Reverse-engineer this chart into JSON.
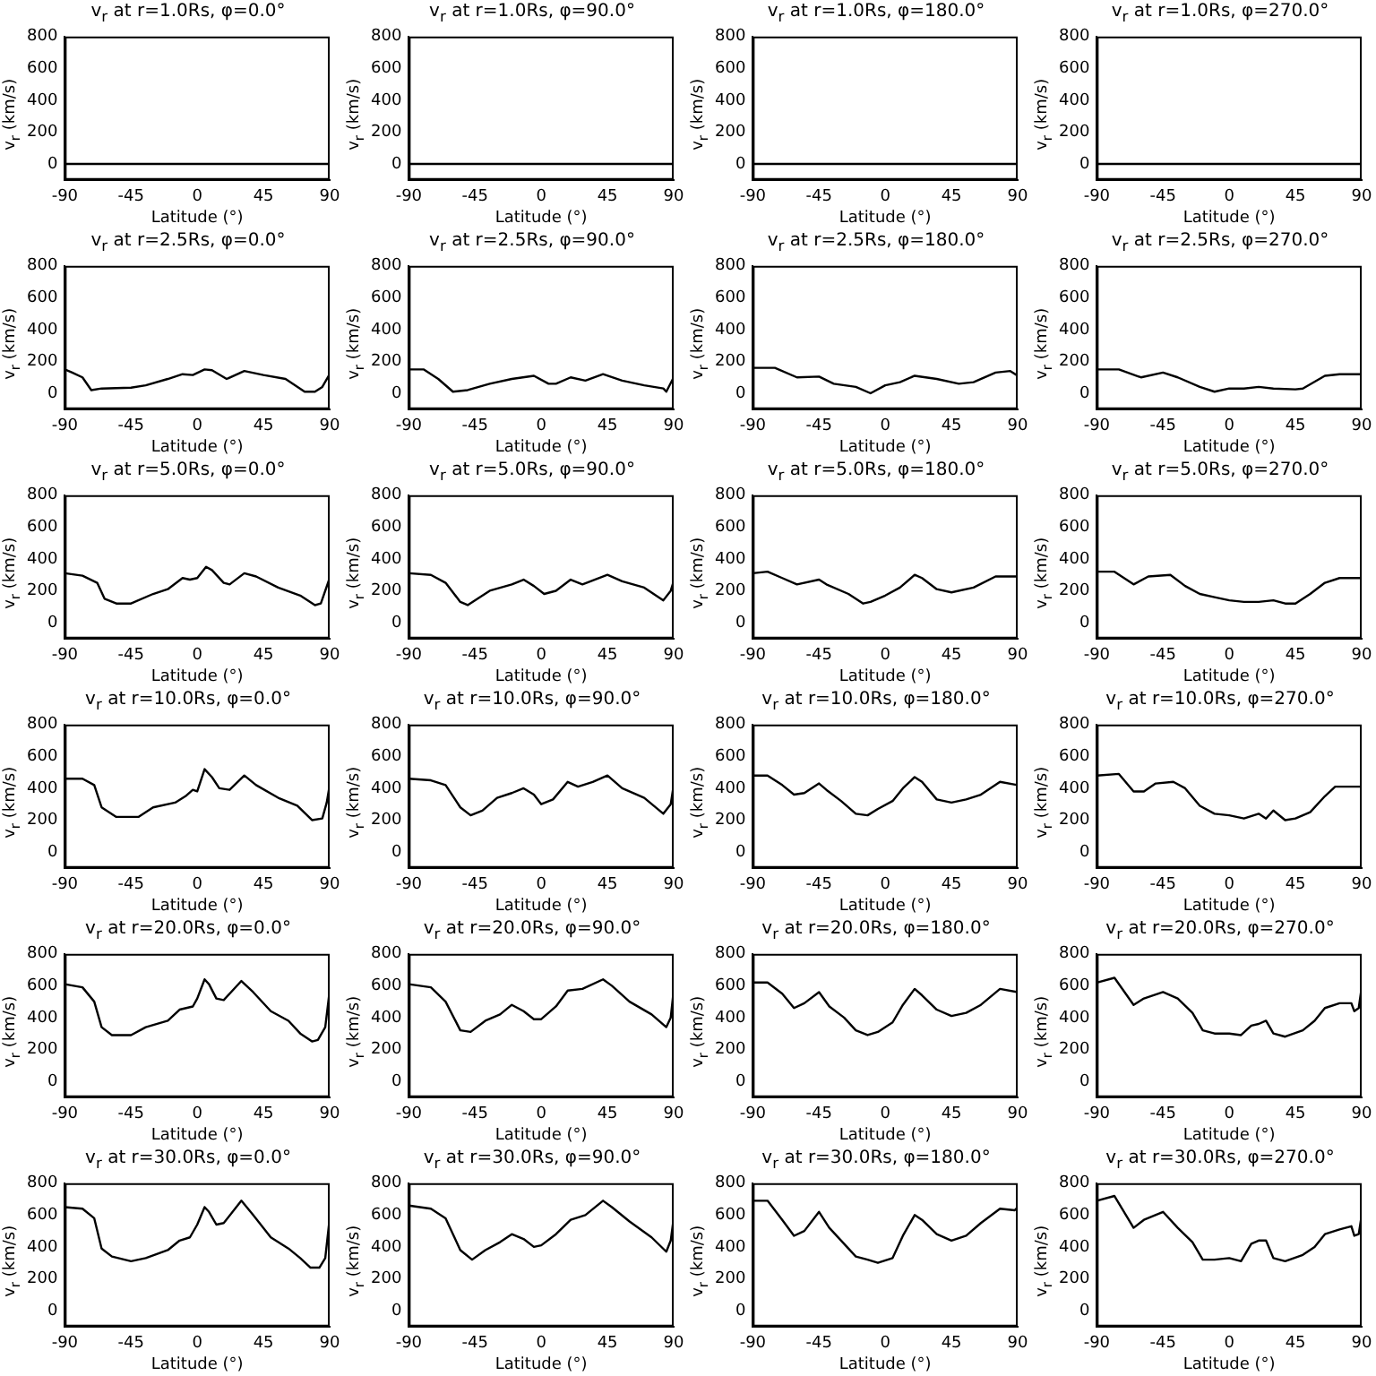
{
  "chart_data": [
    {
      "type": "line",
      "title": "v$_{r}$ at r=1.0Rs, φ=0.0°",
      "xlabel": "Latitude (°)",
      "ylabel": "v$_{r}$ (km/s)",
      "x": [
        -90,
        90
      ],
      "values": [
        0,
        0
      ],
      "color": "#000000",
      "xlim": [
        -90,
        90
      ],
      "xticks": [
        -90,
        -45,
        0,
        45,
        90
      ],
      "ylim": [
        -100,
        800
      ],
      "yticks": [
        0,
        200,
        400,
        600,
        800
      ]
    },
    {
      "type": "line",
      "title": "v$_{r}$ at r=1.0Rs, φ=90.0°",
      "xlabel": "Latitude (°)",
      "ylabel": "v$_{r}$ (km/s)",
      "x": [
        -90,
        90
      ],
      "values": [
        0,
        0
      ],
      "color": "#000000",
      "xlim": [
        -90,
        90
      ],
      "xticks": [
        -90,
        -45,
        0,
        45,
        90
      ],
      "ylim": [
        -100,
        800
      ],
      "yticks": [
        0,
        200,
        400,
        600,
        800
      ]
    },
    {
      "type": "line",
      "title": "v$_{r}$ at r=1.0Rs, φ=180.0°",
      "xlabel": "Latitude (°)",
      "ylabel": "v$_{r}$ (km/s)",
      "x": [
        -90,
        90
      ],
      "values": [
        0,
        0
      ],
      "color": "#000000",
      "xlim": [
        -90,
        90
      ],
      "xticks": [
        -90,
        -45,
        0,
        45,
        90
      ],
      "ylim": [
        -100,
        800
      ],
      "yticks": [
        0,
        200,
        400,
        600,
        800
      ]
    },
    {
      "type": "line",
      "title": "v$_{r}$ at r=1.0Rs, φ=270.0°",
      "xlabel": "Latitude (°)",
      "ylabel": "v$_{r}$ (km/s)",
      "x": [
        -90,
        90
      ],
      "values": [
        0,
        0
      ],
      "color": "#000000",
      "xlim": [
        -90,
        90
      ],
      "xticks": [
        -90,
        -45,
        0,
        45,
        90
      ],
      "ylim": [
        -100,
        800
      ],
      "yticks": [
        0,
        200,
        400,
        600,
        800
      ]
    },
    {
      "type": "line",
      "title": "v$_{r}$ at r=2.5Rs, φ=0.0°",
      "xlabel": "Latitude (°)",
      "ylabel": "v$_{r}$ (km/s)",
      "x": [
        -90,
        -85,
        -78,
        -72,
        -65,
        -45,
        -35,
        -20,
        -10,
        -3,
        5,
        10,
        20,
        32,
        45,
        60,
        73,
        80,
        85,
        90
      ],
      "values": [
        150,
        130,
        100,
        20,
        30,
        35,
        50,
        90,
        120,
        115,
        150,
        145,
        90,
        140,
        115,
        90,
        10,
        10,
        40,
        120
      ],
      "color": "#000000",
      "xlim": [
        -90,
        90
      ],
      "xticks": [
        -90,
        -45,
        0,
        45,
        90
      ],
      "ylim": [
        -100,
        800
      ],
      "yticks": [
        0,
        200,
        400,
        600,
        800
      ]
    },
    {
      "type": "line",
      "title": "v$_{r}$ at r=2.5Rs, φ=90.0°",
      "xlabel": "Latitude (°)",
      "ylabel": "v$_{r}$ (km/s)",
      "x": [
        -90,
        -80,
        -70,
        -60,
        -50,
        -35,
        -20,
        -5,
        5,
        10,
        20,
        30,
        42,
        55,
        70,
        83,
        85,
        90
      ],
      "values": [
        150,
        150,
        90,
        10,
        20,
        60,
        90,
        110,
        60,
        60,
        100,
        80,
        120,
        80,
        50,
        30,
        10,
        100
      ],
      "color": "#000000",
      "xlim": [
        -90,
        90
      ],
      "xticks": [
        -90,
        -45,
        0,
        45,
        90
      ],
      "ylim": [
        -100,
        800
      ],
      "yticks": [
        0,
        200,
        400,
        600,
        800
      ]
    },
    {
      "type": "line",
      "title": "v$_{r}$ at r=2.5Rs, φ=180.0°",
      "xlabel": "Latitude (°)",
      "ylabel": "v$_{r}$ (km/s)",
      "x": [
        -90,
        -75,
        -60,
        -45,
        -35,
        -20,
        -10,
        0,
        10,
        20,
        35,
        50,
        60,
        75,
        85,
        90
      ],
      "values": [
        160,
        160,
        100,
        105,
        60,
        40,
        0,
        50,
        70,
        110,
        90,
        60,
        70,
        130,
        140,
        110
      ],
      "color": "#000000",
      "xlim": [
        -90,
        90
      ],
      "xticks": [
        -90,
        -45,
        0,
        45,
        90
      ],
      "ylim": [
        -100,
        800
      ],
      "yticks": [
        0,
        200,
        400,
        600,
        800
      ]
    },
    {
      "type": "line",
      "title": "v$_{r}$ at r=2.5Rs, φ=270.0°",
      "xlabel": "Latitude (°)",
      "ylabel": "v$_{r}$ (km/s)",
      "x": [
        -90,
        -75,
        -60,
        -45,
        -35,
        -20,
        -10,
        0,
        10,
        20,
        30,
        45,
        50,
        65,
        75,
        90
      ],
      "values": [
        150,
        150,
        100,
        130,
        100,
        40,
        10,
        30,
        30,
        40,
        30,
        25,
        30,
        110,
        120,
        120
      ],
      "color": "#000000",
      "xlim": [
        -90,
        90
      ],
      "xticks": [
        -90,
        -45,
        0,
        45,
        90
      ],
      "ylim": [
        -100,
        800
      ],
      "yticks": [
        0,
        200,
        400,
        600,
        800
      ]
    },
    {
      "type": "line",
      "title": "v$_{r}$ at r=5.0Rs, φ=0.0°",
      "xlabel": "Latitude (°)",
      "ylabel": "v$_{r}$ (km/s)",
      "x": [
        -90,
        -78,
        -68,
        -63,
        -55,
        -45,
        -30,
        -20,
        -10,
        -5,
        0,
        6,
        10,
        18,
        22,
        32,
        40,
        55,
        70,
        80,
        84,
        90
      ],
      "values": [
        310,
        295,
        250,
        150,
        120,
        120,
        180,
        210,
        280,
        270,
        280,
        350,
        330,
        250,
        240,
        310,
        290,
        220,
        170,
        110,
        120,
        280
      ],
      "color": "#000000",
      "xlim": [
        -90,
        90
      ],
      "xticks": [
        -90,
        -45,
        0,
        45,
        90
      ],
      "ylim": [
        -100,
        800
      ],
      "yticks": [
        0,
        200,
        400,
        600,
        800
      ]
    },
    {
      "type": "line",
      "title": "v$_{r}$ at r=5.0Rs, φ=90.0°",
      "xlabel": "Latitude (°)",
      "ylabel": "v$_{r}$ (km/s)",
      "x": [
        -90,
        -75,
        -65,
        -55,
        -50,
        -35,
        -20,
        -12,
        -5,
        2,
        10,
        20,
        28,
        45,
        55,
        70,
        83,
        88,
        90
      ],
      "values": [
        310,
        300,
        250,
        130,
        110,
        200,
        240,
        270,
        230,
        180,
        200,
        270,
        240,
        300,
        260,
        220,
        140,
        200,
        260
      ],
      "color": "#000000",
      "xlim": [
        -90,
        90
      ],
      "xticks": [
        -90,
        -45,
        0,
        45,
        90
      ],
      "ylim": [
        -100,
        800
      ],
      "yticks": [
        0,
        200,
        400,
        600,
        800
      ]
    },
    {
      "type": "line",
      "title": "v$_{r}$ at r=5.0Rs, φ=180.0°",
      "xlabel": "Latitude (°)",
      "ylabel": "v$_{r}$ (km/s)",
      "x": [
        -90,
        -80,
        -70,
        -60,
        -45,
        -40,
        -25,
        -15,
        -10,
        0,
        10,
        20,
        25,
        35,
        45,
        60,
        75,
        90
      ],
      "values": [
        310,
        320,
        280,
        240,
        270,
        240,
        180,
        120,
        130,
        170,
        220,
        300,
        280,
        210,
        190,
        220,
        290,
        290
      ],
      "color": "#000000",
      "xlim": [
        -90,
        90
      ],
      "xticks": [
        -90,
        -45,
        0,
        45,
        90
      ],
      "ylim": [
        -100,
        800
      ],
      "yticks": [
        0,
        200,
        400,
        600,
        800
      ]
    },
    {
      "type": "line",
      "title": "v$_{r}$ at r=5.0Rs, φ=270.0°",
      "xlabel": "Latitude (°)",
      "ylabel": "v$_{r}$ (km/s)",
      "x": [
        -90,
        -78,
        -65,
        -55,
        -40,
        -30,
        -20,
        -10,
        0,
        10,
        20,
        30,
        38,
        45,
        55,
        65,
        75,
        90
      ],
      "values": [
        320,
        320,
        240,
        290,
        300,
        230,
        180,
        160,
        140,
        130,
        130,
        140,
        120,
        120,
        180,
        250,
        280,
        280
      ],
      "color": "#000000",
      "xlim": [
        -90,
        90
      ],
      "xticks": [
        -90,
        -45,
        0,
        45,
        90
      ],
      "ylim": [
        -100,
        800
      ],
      "yticks": [
        0,
        200,
        400,
        600,
        800
      ]
    },
    {
      "type": "line",
      "title": "v$_{r}$ at r=10.0Rs, φ=0.0°",
      "xlabel": "Latitude (°)",
      "ylabel": "v$_{r}$ (km/s)",
      "x": [
        -90,
        -78,
        -70,
        -65,
        -55,
        -40,
        -30,
        -15,
        -8,
        -3,
        0,
        5,
        10,
        15,
        22,
        32,
        40,
        55,
        68,
        78,
        85,
        88,
        90
      ],
      "values": [
        460,
        460,
        420,
        280,
        220,
        220,
        280,
        310,
        350,
        390,
        380,
        520,
        470,
        400,
        390,
        480,
        420,
        340,
        290,
        200,
        210,
        310,
        420
      ],
      "color": "#000000",
      "xlim": [
        -90,
        90
      ],
      "xticks": [
        -90,
        -45,
        0,
        45,
        90
      ],
      "ylim": [
        -100,
        800
      ],
      "yticks": [
        0,
        200,
        400,
        600,
        800
      ]
    },
    {
      "type": "line",
      "title": "v$_{r}$ at r=10.0Rs, φ=90.0°",
      "xlabel": "Latitude (°)",
      "ylabel": "v$_{r}$ (km/s)",
      "x": [
        -90,
        -75,
        -65,
        -55,
        -48,
        -40,
        -30,
        -20,
        -12,
        -5,
        0,
        8,
        18,
        25,
        35,
        45,
        55,
        70,
        83,
        88,
        90
      ],
      "values": [
        460,
        450,
        420,
        280,
        230,
        260,
        340,
        370,
        400,
        360,
        300,
        330,
        440,
        410,
        440,
        480,
        400,
        340,
        240,
        300,
        420
      ],
      "color": "#000000",
      "xlim": [
        -90,
        90
      ],
      "xticks": [
        -90,
        -45,
        0,
        45,
        90
      ],
      "ylim": [
        -100,
        800
      ],
      "yticks": [
        0,
        200,
        400,
        600,
        800
      ]
    },
    {
      "type": "line",
      "title": "v$_{r}$ at r=10.0Rs, φ=180.0°",
      "xlabel": "Latitude (°)",
      "ylabel": "v$_{r}$ (km/s)",
      "x": [
        -90,
        -80,
        -70,
        -62,
        -55,
        -45,
        -40,
        -30,
        -20,
        -12,
        -5,
        5,
        12,
        20,
        25,
        35,
        45,
        55,
        65,
        78,
        90
      ],
      "values": [
        480,
        480,
        420,
        360,
        370,
        430,
        390,
        320,
        240,
        230,
        270,
        320,
        400,
        470,
        440,
        330,
        310,
        330,
        360,
        440,
        420
      ],
      "color": "#000000",
      "xlim": [
        -90,
        90
      ],
      "xticks": [
        -90,
        -45,
        0,
        45,
        90
      ],
      "ylim": [
        -100,
        800
      ],
      "yticks": [
        0,
        200,
        400,
        600,
        800
      ]
    },
    {
      "type": "line",
      "title": "v$_{r}$ at r=10.0Rs, φ=270.0°",
      "xlabel": "Latitude (°)",
      "ylabel": "v$_{r}$ (km/s)",
      "x": [
        -90,
        -75,
        -65,
        -58,
        -50,
        -38,
        -30,
        -20,
        -10,
        0,
        10,
        20,
        25,
        30,
        38,
        45,
        55,
        65,
        72,
        90
      ],
      "values": [
        480,
        490,
        380,
        380,
        430,
        440,
        400,
        290,
        240,
        230,
        210,
        240,
        210,
        260,
        200,
        210,
        250,
        350,
        410,
        410
      ],
      "color": "#000000",
      "xlim": [
        -90,
        90
      ],
      "xticks": [
        -90,
        -45,
        0,
        45,
        90
      ],
      "ylim": [
        -100,
        800
      ],
      "yticks": [
        0,
        200,
        400,
        600,
        800
      ]
    },
    {
      "type": "line",
      "title": "v$_{r}$ at r=20.0Rs, φ=0.0°",
      "xlabel": "Latitude (°)",
      "ylabel": "v$_{r}$ (km/s)",
      "x": [
        -90,
        -78,
        -70,
        -65,
        -58,
        -45,
        -35,
        -20,
        -12,
        -3,
        0,
        5,
        8,
        13,
        18,
        30,
        38,
        50,
        62,
        70,
        78,
        82,
        87,
        90
      ],
      "values": [
        610,
        590,
        500,
        340,
        290,
        290,
        340,
        380,
        450,
        470,
        520,
        640,
        610,
        520,
        510,
        630,
        560,
        440,
        380,
        300,
        250,
        260,
        340,
        570
      ],
      "color": "#000000",
      "xlim": [
        -90,
        90
      ],
      "xticks": [
        -90,
        -45,
        0,
        45,
        90
      ],
      "ylim": [
        -100,
        800
      ],
      "yticks": [
        0,
        200,
        400,
        600,
        800
      ]
    },
    {
      "type": "line",
      "title": "v$_{r}$ at r=20.0Rs, φ=90.0°",
      "xlabel": "Latitude (°)",
      "ylabel": "v$_{r}$ (km/s)",
      "x": [
        -90,
        -75,
        -65,
        -55,
        -48,
        -38,
        -28,
        -20,
        -12,
        -5,
        0,
        10,
        18,
        28,
        42,
        48,
        60,
        75,
        85,
        88,
        90
      ],
      "values": [
        610,
        590,
        500,
        320,
        310,
        380,
        420,
        480,
        440,
        390,
        390,
        470,
        570,
        580,
        640,
        600,
        500,
        420,
        340,
        400,
        570
      ],
      "color": "#000000",
      "xlim": [
        -90,
        90
      ],
      "xticks": [
        -90,
        -45,
        0,
        45,
        90
      ],
      "ylim": [
        -100,
        800
      ],
      "yticks": [
        0,
        200,
        400,
        600,
        800
      ]
    },
    {
      "type": "line",
      "title": "v$_{r}$ at r=20.0Rs, φ=180.0°",
      "xlabel": "Latitude (°)",
      "ylabel": "v$_{r}$ (km/s)",
      "x": [
        -90,
        -80,
        -70,
        -62,
        -55,
        -45,
        -38,
        -28,
        -20,
        -12,
        -5,
        5,
        12,
        20,
        25,
        35,
        45,
        55,
        65,
        78,
        90
      ],
      "values": [
        620,
        620,
        550,
        460,
        490,
        560,
        470,
        400,
        320,
        290,
        310,
        370,
        480,
        580,
        540,
        450,
        410,
        430,
        480,
        580,
        560
      ],
      "color": "#000000",
      "xlim": [
        -90,
        90
      ],
      "xticks": [
        -90,
        -45,
        0,
        45,
        90
      ],
      "ylim": [
        -100,
        800
      ],
      "yticks": [
        0,
        200,
        400,
        600,
        800
      ]
    },
    {
      "type": "line",
      "title": "v$_{r}$ at r=20.0Rs, φ=270.0°",
      "xlabel": "Latitude (°)",
      "ylabel": "v$_{r}$ (km/s)",
      "x": [
        -90,
        -78,
        -65,
        -58,
        -45,
        -35,
        -25,
        -18,
        -10,
        0,
        8,
        15,
        20,
        25,
        30,
        38,
        50,
        58,
        65,
        75,
        83,
        85,
        88,
        90
      ],
      "values": [
        620,
        650,
        480,
        520,
        560,
        520,
        430,
        320,
        300,
        300,
        290,
        350,
        360,
        380,
        300,
        280,
        320,
        380,
        460,
        490,
        490,
        440,
        460,
        590
      ],
      "color": "#000000",
      "xlim": [
        -90,
        90
      ],
      "xticks": [
        -90,
        -45,
        0,
        45,
        90
      ],
      "ylim": [
        -100,
        800
      ],
      "yticks": [
        0,
        200,
        400,
        600,
        800
      ]
    },
    {
      "type": "line",
      "title": "v$_{r}$ at r=30.0Rs, φ=0.0°",
      "xlabel": "Latitude (°)",
      "ylabel": "v$_{r}$ (km/s)",
      "x": [
        -90,
        -78,
        -70,
        -65,
        -58,
        -45,
        -35,
        -20,
        -12,
        -5,
        0,
        5,
        8,
        13,
        18,
        30,
        38,
        50,
        62,
        70,
        77,
        83,
        87,
        90
      ],
      "values": [
        650,
        640,
        580,
        390,
        340,
        310,
        330,
        380,
        440,
        460,
        540,
        650,
        620,
        540,
        550,
        690,
        600,
        460,
        390,
        330,
        270,
        270,
        330,
        580
      ],
      "color": "#000000",
      "xlim": [
        -90,
        90
      ],
      "xticks": [
        -90,
        -45,
        0,
        45,
        90
      ],
      "ylim": [
        -100,
        800
      ],
      "yticks": [
        0,
        200,
        400,
        600,
        800
      ]
    },
    {
      "type": "line",
      "title": "v$_{r}$ at r=30.0Rs, φ=90.0°",
      "xlabel": "Latitude (°)",
      "ylabel": "v$_{r}$ (km/s)",
      "x": [
        -90,
        -75,
        -65,
        -55,
        -47,
        -38,
        -28,
        -20,
        -12,
        -5,
        0,
        10,
        20,
        30,
        42,
        48,
        60,
        75,
        85,
        88,
        90
      ],
      "values": [
        660,
        640,
        580,
        380,
        320,
        380,
        430,
        480,
        450,
        400,
        410,
        480,
        570,
        600,
        690,
        650,
        560,
        460,
        370,
        440,
        580
      ],
      "color": "#000000",
      "xlim": [
        -90,
        90
      ],
      "xticks": [
        -90,
        -45,
        0,
        45,
        90
      ],
      "ylim": [
        -100,
        800
      ],
      "yticks": [
        0,
        200,
        400,
        600,
        800
      ]
    },
    {
      "type": "line",
      "title": "v$_{r}$ at r=30.0Rs, φ=180.0°",
      "xlabel": "Latitude (°)",
      "ylabel": "v$_{r}$ (km/s)",
      "x": [
        -90,
        -80,
        -70,
        -62,
        -55,
        -45,
        -38,
        -28,
        -20,
        -12,
        -5,
        5,
        12,
        20,
        25,
        35,
        45,
        55,
        65,
        78,
        88,
        90
      ],
      "values": [
        690,
        690,
        570,
        470,
        500,
        620,
        520,
        420,
        340,
        320,
        300,
        330,
        470,
        600,
        570,
        480,
        440,
        470,
        550,
        640,
        630,
        650
      ],
      "color": "#000000",
      "xlim": [
        -90,
        90
      ],
      "xticks": [
        -90,
        -45,
        0,
        45,
        90
      ],
      "ylim": [
        -100,
        800
      ],
      "yticks": [
        0,
        200,
        400,
        600,
        800
      ]
    },
    {
      "type": "line",
      "title": "v$_{r}$ at r=30.0Rs, φ=270.0°",
      "xlabel": "Latitude (°)",
      "ylabel": "v$_{r}$ (km/s)",
      "x": [
        -90,
        -78,
        -65,
        -58,
        -45,
        -35,
        -25,
        -18,
        -10,
        0,
        8,
        15,
        20,
        25,
        30,
        38,
        50,
        58,
        65,
        75,
        83,
        85,
        88,
        90
      ],
      "values": [
        690,
        720,
        520,
        570,
        620,
        520,
        430,
        320,
        320,
        330,
        310,
        420,
        440,
        440,
        330,
        310,
        350,
        400,
        480,
        510,
        530,
        470,
        480,
        600
      ],
      "color": "#000000",
      "xlim": [
        -90,
        90
      ],
      "xticks": [
        -90,
        -45,
        0,
        45,
        90
      ],
      "ylim": [
        -100,
        800
      ],
      "yticks": [
        0,
        200,
        400,
        600,
        800
      ]
    }
  ]
}
